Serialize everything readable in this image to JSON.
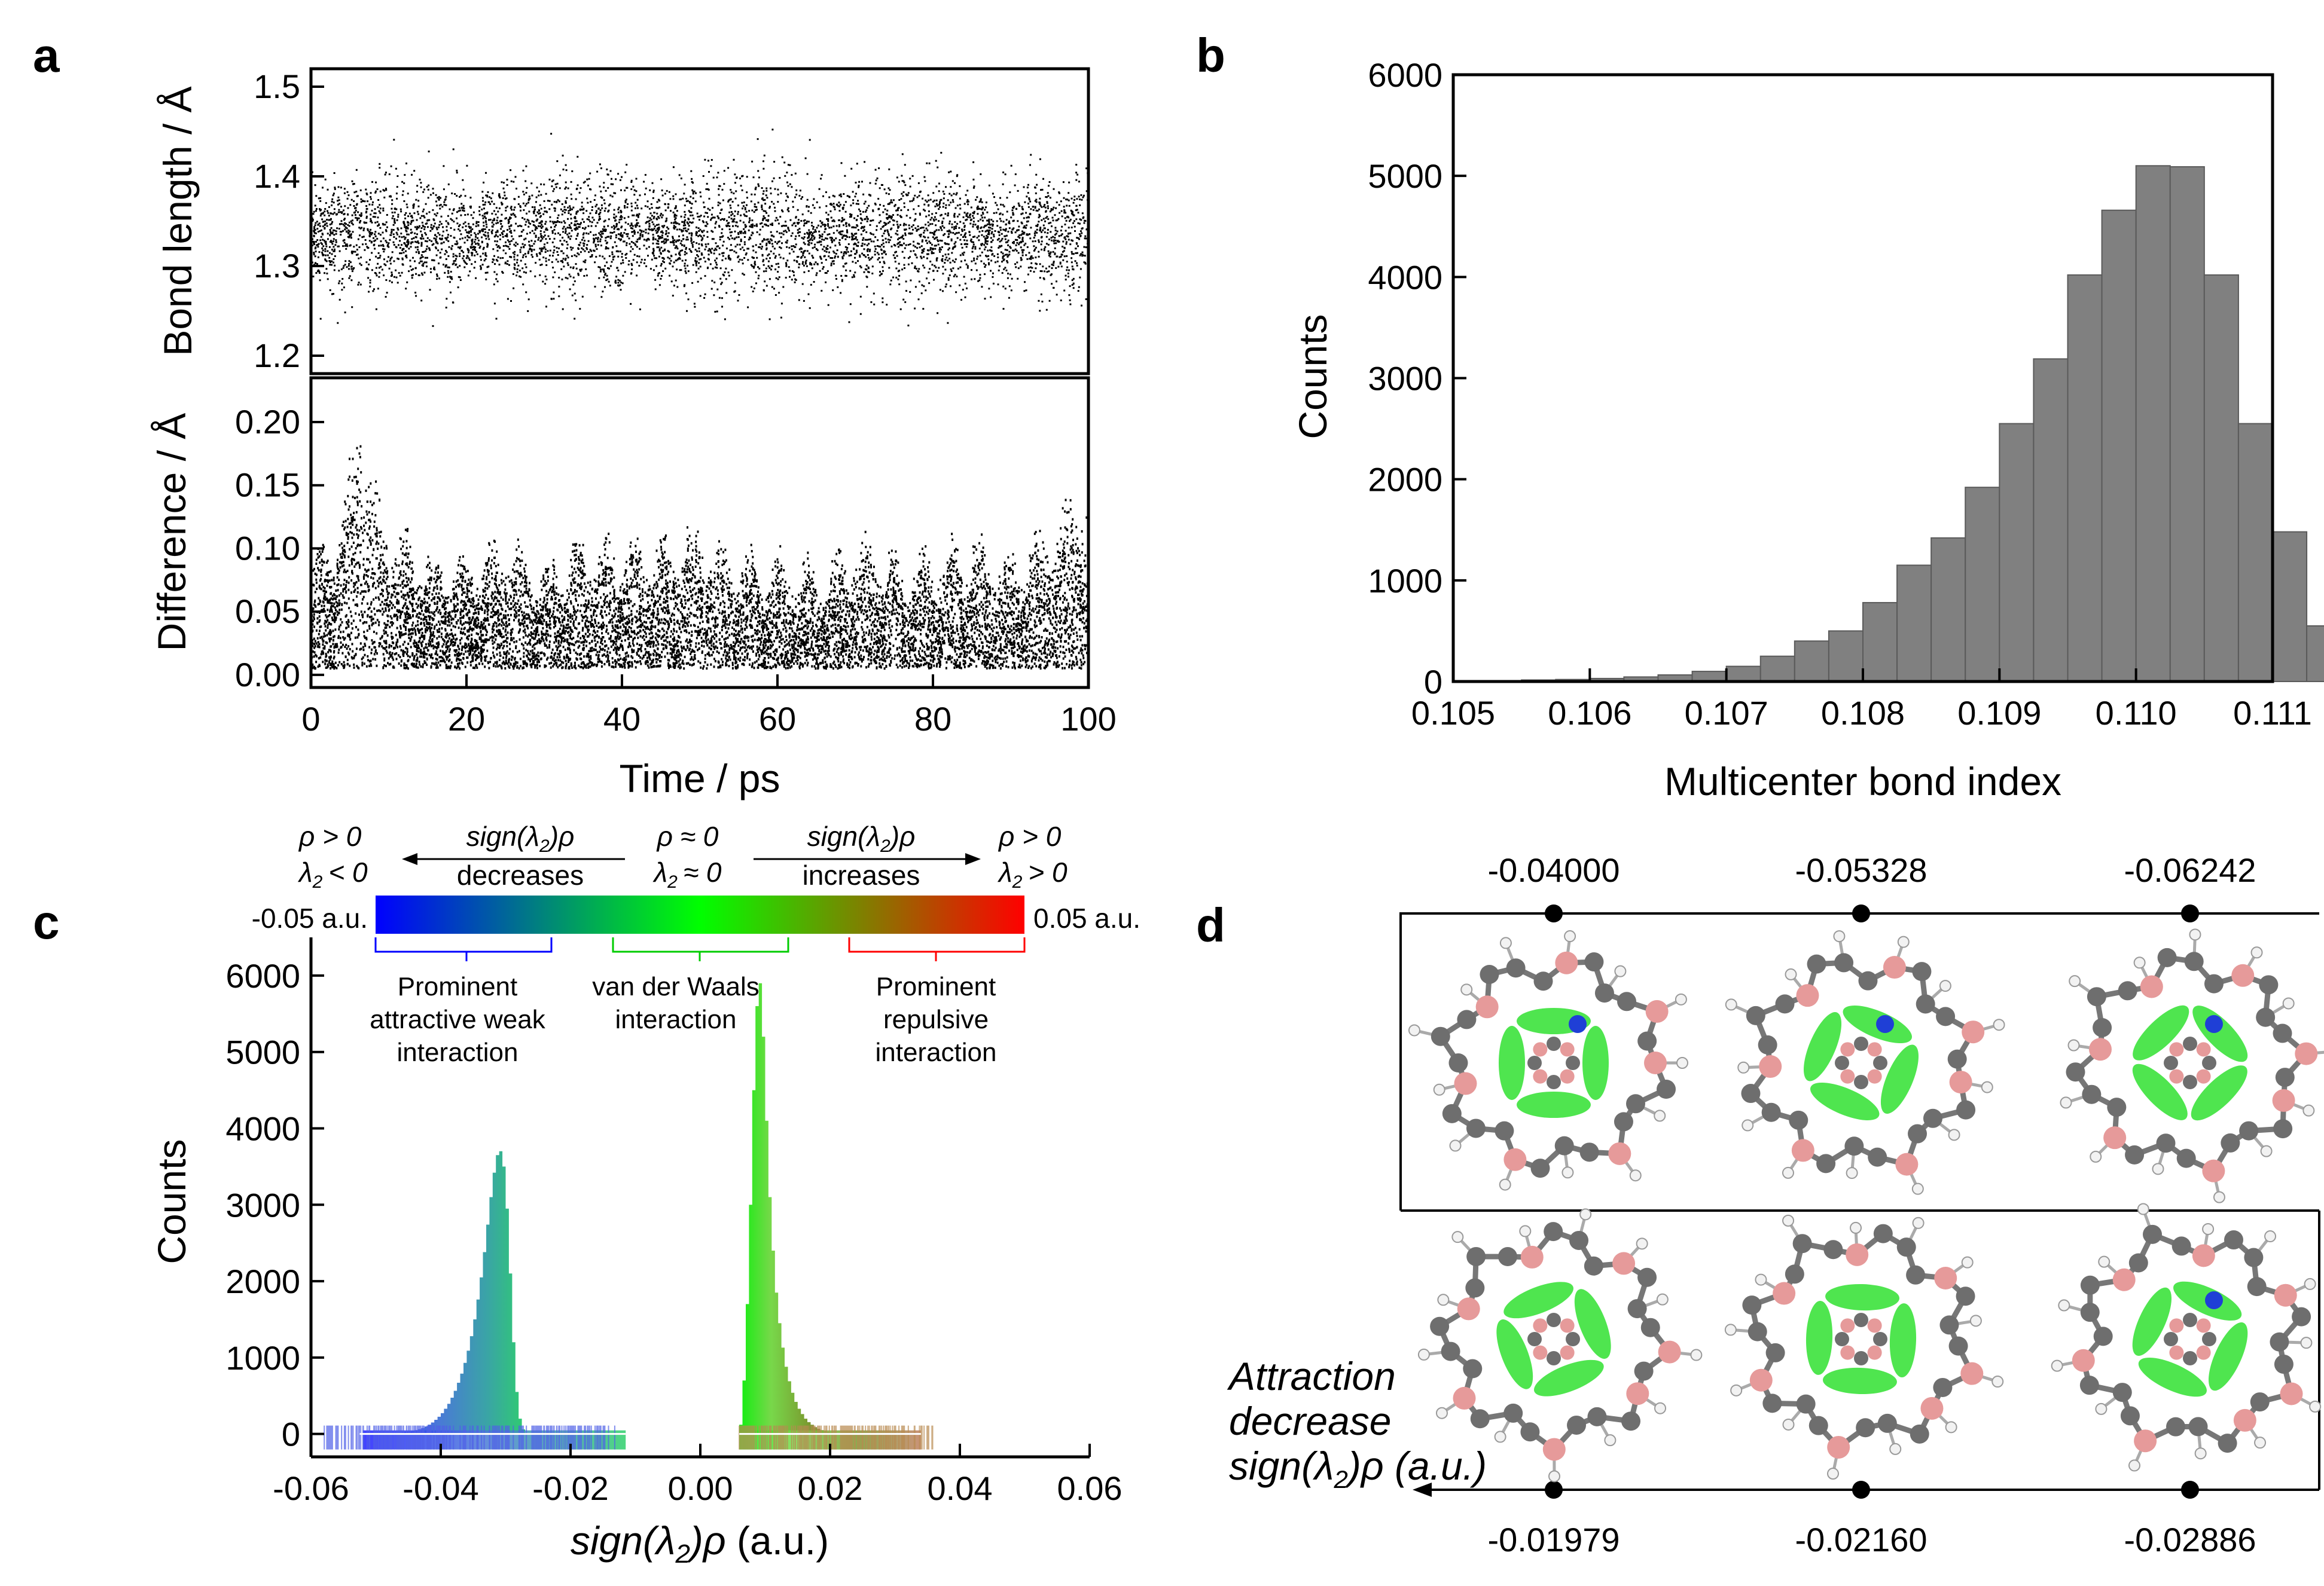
{
  "panel_labels": {
    "a": "a",
    "b": "b",
    "c": "c",
    "d": "d"
  },
  "chart_data": [
    {
      "id": "a_top",
      "type": "scatter",
      "ylabel": "Bond length / Å",
      "xlim": [
        0,
        100
      ],
      "ylim": [
        1.18,
        1.52
      ],
      "yticks": [
        "1.2",
        "1.3",
        "1.4",
        "1.5"
      ],
      "series_color": "#000000",
      "noise": {
        "mean": 1.335,
        "std": 0.03
      }
    },
    {
      "id": "a_bottom",
      "type": "scatter",
      "xlabel": "Time / ps",
      "ylabel": "Difference / Å",
      "xlim": [
        0,
        100
      ],
      "ylim": [
        -0.01,
        0.235
      ],
      "xticks": [
        "0",
        "20",
        "40",
        "60",
        "80",
        "100"
      ],
      "yticks": [
        "0.00",
        "0.05",
        "0.10",
        "0.15",
        "0.20"
      ],
      "series_color": "#000000",
      "envelope": {
        "x": [
          0,
          2,
          4,
          6,
          8,
          10,
          15,
          20,
          25,
          30,
          35,
          40,
          45,
          50,
          55,
          60,
          65,
          70,
          75,
          80,
          85,
          90,
          95,
          100
        ],
        "y": [
          0.07,
          0.08,
          0.1,
          0.17,
          0.12,
          0.09,
          0.07,
          0.07,
          0.08,
          0.06,
          0.08,
          0.08,
          0.08,
          0.09,
          0.07,
          0.07,
          0.06,
          0.08,
          0.07,
          0.07,
          0.08,
          0.07,
          0.09,
          0.12
        ]
      }
    },
    {
      "id": "b",
      "type": "bar",
      "xlabel": "Multicenter bond index",
      "ylabel": "Counts",
      "xlim": [
        0.105,
        0.111
      ],
      "ylim": [
        0,
        6000
      ],
      "xticks": [
        "0.105",
        "0.106",
        "0.107",
        "0.108",
        "0.109",
        "0.110",
        "0.111"
      ],
      "yticks": [
        "0",
        "1000",
        "2000",
        "3000",
        "4000",
        "5000",
        "6000"
      ],
      "bin_start": 0.1055,
      "bin_width": 0.00025,
      "values": [
        15,
        20,
        30,
        45,
        65,
        100,
        150,
        250,
        400,
        500,
        780,
        1150,
        1420,
        1920,
        2550,
        3190,
        4020,
        4660,
        5100,
        5090,
        4020,
        2550,
        1480,
        550,
        140,
        20
      ],
      "bar_color": "#808080"
    },
    {
      "id": "c",
      "type": "bar",
      "xlabel_func": "sign(λ",
      "xlabel_sub": "2",
      "xlabel_rest": ")ρ",
      "xlabel_unit": " (a.u.)",
      "ylabel": "Counts",
      "xlim": [
        -0.06,
        0.06
      ],
      "ylim": [
        -300,
        6500
      ],
      "xticks": [
        "-0.06",
        "-0.04",
        "-0.02",
        "0.00",
        "0.02",
        "0.04",
        "0.06"
      ],
      "yticks": [
        "0",
        "1000",
        "2000",
        "3000",
        "4000",
        "5000",
        "6000"
      ],
      "bin_width": 0.0005,
      "left_peak": {
        "start": -0.052,
        "values": [
          2,
          3,
          3,
          4,
          5,
          6,
          7,
          8,
          10,
          12,
          14,
          17,
          21,
          26,
          32,
          40,
          50,
          62,
          78,
          98,
          122,
          150,
          185,
          225,
          272,
          330,
          395,
          475,
          565,
          670,
          790,
          930,
          1090,
          1280,
          1500,
          1760,
          2050,
          2380,
          2740,
          3100,
          3420,
          3650,
          3700,
          3500,
          2950,
          2100,
          1200,
          550,
          200,
          60,
          10
        ]
      },
      "right_peak": {
        "start": 0.006,
        "values": [
          120,
          700,
          1700,
          3000,
          4500,
          5600,
          5900,
          5200,
          4100,
          3100,
          2400,
          1850,
          1450,
          1130,
          880,
          690,
          540,
          420,
          330,
          260,
          200,
          155,
          120,
          90,
          68,
          50,
          36,
          25,
          17,
          11,
          7,
          4,
          2
        ]
      },
      "colorbar": {
        "min_label": "-0.05 a.u.",
        "max_label": "0.05 a.u.",
        "colors": [
          "#0000ff",
          "#00ff00",
          "#ff0000"
        ]
      },
      "regions": [
        {
          "label_lines": [
            "Prominent",
            "attractive weak",
            "interaction"
          ],
          "color": "#0000ff"
        },
        {
          "label_lines": [
            "van der Waals",
            "interaction"
          ],
          "color": "#00cc00"
        },
        {
          "label_lines": [
            "Prominent",
            "repulsive",
            "interaction"
          ],
          "color": "#ff0000"
        }
      ],
      "header": {
        "rho_pos": "ρ  > 0",
        "lambda_neg": "< 0",
        "lambda_zero": "≈ 0",
        "lambda_pos": "> 0",
        "rho_zero": "ρ  ≈ 0",
        "sign_expr": "sign(λ",
        "sign_expr_rest": ")ρ",
        "lambda_sym": "λ",
        "sub_2": "2",
        "decreases": "decreases",
        "increases": "increases"
      }
    }
  ],
  "panel_d": {
    "top_values": [
      "-0.04000",
      "-0.05328",
      "-0.06242"
    ],
    "bottom_values": [
      "-0.01979",
      "-0.02160",
      "-0.02886"
    ],
    "caption_line1": "Attraction",
    "caption_line2": "decrease",
    "caption_line3_func": "sign(λ",
    "caption_line3_sub": "2",
    "caption_line3_rest": ")ρ (a.u.)"
  }
}
